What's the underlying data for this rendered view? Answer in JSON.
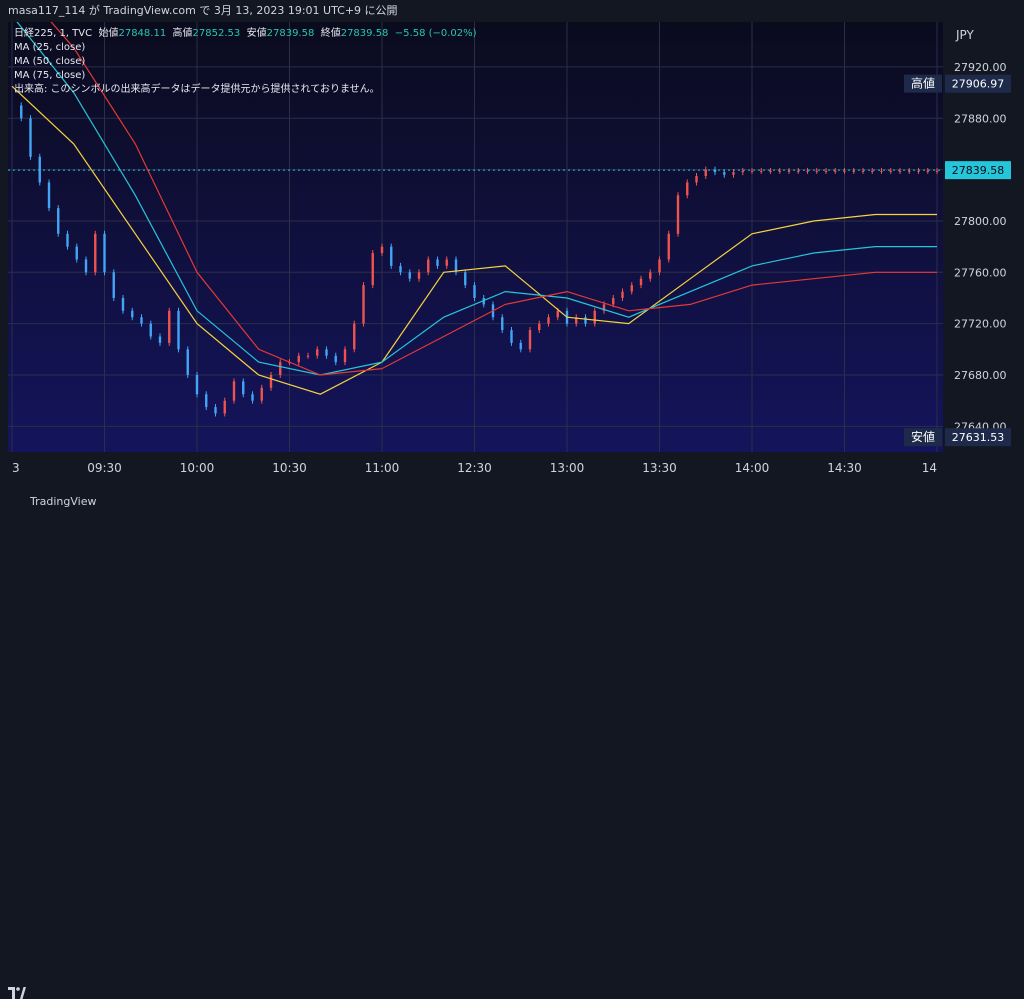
{
  "header": {
    "caption": "masa117_114 が TradingView.com で 3月 13, 2023 19:01 UTC+9 に公開"
  },
  "legend": {
    "symbol": "日経225, 1, TVC",
    "open_label": "始値",
    "open_value": "27848.11",
    "high_label": "高値",
    "high_value": "27852.53",
    "low_label": "安値",
    "low_value": "27839.58",
    "close_label": "終値",
    "close_value": "27839.58",
    "change": "−5.58 (−0.02%)",
    "ma25": "MA (25, close)",
    "ma50": "MA (50, close)",
    "ma75": "MA (75, close)",
    "volume_note": "出来高: このシンボルの出来高データはデータ提供元から提供されておりません。"
  },
  "footer": {
    "brand": "TradingView"
  },
  "chart_data": {
    "type": "line",
    "currency": "JPY",
    "y_ticks": [
      27640,
      27680,
      27720,
      27760,
      27800,
      27840,
      27880,
      27920
    ],
    "y_tick_labels": [
      "27640.00",
      "27680.00",
      "27720.00",
      "27760.00",
      "27800.00",
      "27840.00",
      "27880.00",
      "27920.00"
    ],
    "ylim": [
      27620,
      27955
    ],
    "x_tick_labels": [
      "3",
      "09:30",
      "10:00",
      "10:30",
      "11:00",
      "12:30",
      "13:00",
      "13:30",
      "14:00",
      "14:30",
      "14"
    ],
    "markers": {
      "high": {
        "label": "高値",
        "value": "27906.97"
      },
      "last": {
        "value": "27839.58"
      },
      "low": {
        "label": "安値",
        "value": "27631.53"
      }
    },
    "colors": {
      "up": "#ef5350",
      "down": "#42a5f5",
      "ma25": "#f7d33e",
      "ma50": "#26c6da",
      "ma75": "#e53935",
      "bg_top": "#0b0b1e",
      "bg_bottom": "#14145c"
    },
    "series": [
      {
        "name": "price",
        "x": [
          0,
          3,
          6,
          9,
          12,
          15,
          18,
          21,
          24,
          27,
          30,
          33,
          36,
          39,
          42,
          45,
          48,
          51,
          54,
          57,
          60,
          63,
          66,
          69,
          72,
          75,
          78,
          81,
          84,
          87,
          90,
          93,
          96,
          99,
          102,
          105,
          108,
          111,
          114,
          117,
          120,
          123,
          126,
          129,
          132,
          135,
          138,
          141,
          144,
          147,
          150,
          153,
          156,
          159,
          162,
          165,
          168,
          171,
          174,
          177,
          180,
          183,
          186,
          189,
          192,
          195,
          198,
          201,
          204,
          207,
          210,
          213,
          216,
          219,
          222,
          225,
          228,
          231,
          234,
          237,
          240,
          243,
          246,
          249,
          252,
          255,
          258,
          261,
          264,
          267,
          270,
          273,
          276,
          279,
          282,
          285,
          288,
          291,
          294,
          297,
          300
        ],
        "values": [
          27890,
          27880,
          27850,
          27830,
          27810,
          27790,
          27780,
          27770,
          27760,
          27790,
          27760,
          27740,
          27730,
          27725,
          27720,
          27710,
          27705,
          27730,
          27700,
          27680,
          27665,
          27655,
          27650,
          27660,
          27675,
          27665,
          27660,
          27670,
          27680,
          27690,
          27690,
          27695,
          27695,
          27700,
          27695,
          27690,
          27700,
          27720,
          27750,
          27775,
          27780,
          27765,
          27760,
          27755,
          27760,
          27770,
          27765,
          27770,
          27760,
          27750,
          27740,
          27735,
          27725,
          27715,
          27705,
          27700,
          27715,
          27720,
          27725,
          27730,
          27720,
          27725,
          27720,
          27730,
          27735,
          27740,
          27745,
          27750,
          27755,
          27760,
          27770,
          27790,
          27820,
          27830,
          27835,
          27840,
          27838,
          27836,
          27838,
          27839,
          27839,
          27839,
          27839,
          27839,
          27839,
          27839,
          27839,
          27839,
          27839,
          27839,
          27839,
          27839,
          27839,
          27839,
          27839,
          27839,
          27839,
          27839,
          27839,
          27839,
          27839
        ]
      },
      {
        "name": "MA (25, close)",
        "x": [
          0,
          20,
          40,
          60,
          80,
          100,
          120,
          140,
          160,
          180,
          200,
          220,
          240,
          260,
          280,
          300
        ],
        "values": [
          27905,
          27860,
          27790,
          27720,
          27680,
          27665,
          27690,
          27760,
          27765,
          27725,
          27720,
          27755,
          27790,
          27800,
          27805,
          27805
        ]
      },
      {
        "name": "MA (50, close)",
        "x": [
          0,
          20,
          40,
          60,
          80,
          100,
          120,
          140,
          160,
          180,
          200,
          220,
          240,
          260,
          280,
          300
        ],
        "values": [
          27960,
          27900,
          27820,
          27730,
          27690,
          27680,
          27690,
          27725,
          27745,
          27740,
          27725,
          27745,
          27765,
          27775,
          27780,
          27780
        ]
      },
      {
        "name": "MA (75, close)",
        "x": [
          0,
          20,
          40,
          60,
          80,
          100,
          120,
          140,
          160,
          180,
          200,
          220,
          240,
          260,
          280,
          300
        ],
        "values": [
          27990,
          27935,
          27860,
          27760,
          27700,
          27680,
          27685,
          27710,
          27735,
          27745,
          27730,
          27735,
          27750,
          27755,
          27760,
          27760
        ]
      }
    ]
  }
}
